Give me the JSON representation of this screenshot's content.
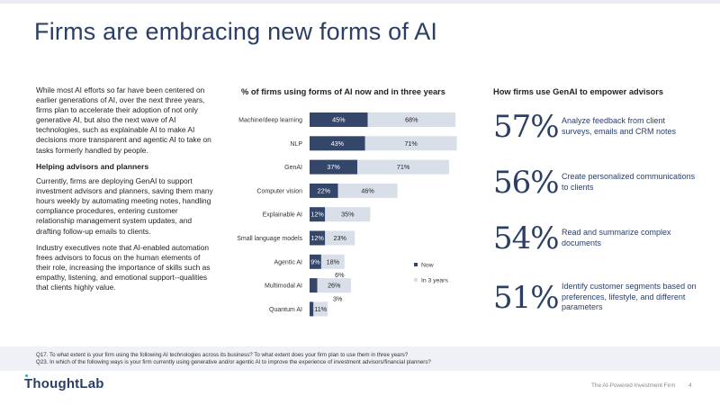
{
  "title": "Firms are embracing new forms of AI",
  "left": {
    "p1": "While most AI efforts so far have been centered on earlier generations of AI, over the next three years, firms plan to accelerate their adoption of not only generative AI, but also the next  wave of AI technologies, such as explainable AI to make AI decisions more transparent and agentic AI to take on tasks formerly handled by people.",
    "heading": "Helping advisors and planners",
    "p2": "Currently, firms are deploying GenAI to support investment advisors and planners, saving them many hours weekly by automating meeting notes, handling compliance procedures, entering customer relationship management system updates, and drafting follow-up emails to clients.",
    "p3": "Industry executives note that AI-enabled automation frees advisors to focus on the human elements of their role, increasing the importance of skills such as empathy, listening, and emotional support--qualities that clients highly value."
  },
  "chart_title": "% of firms using forms of AI now and in three years",
  "chart_data": {
    "type": "bar",
    "orientation": "horizontal",
    "stacked": true,
    "categories": [
      "Machine/deep learning",
      "NLP",
      "GenAI",
      "Computer vision",
      "Explainable AI",
      "Small language models",
      "Agentic AI",
      "Multimodal AI",
      "Quantum AI"
    ],
    "series": [
      {
        "name": "Now",
        "values": [
          45,
          43,
          37,
          22,
          12,
          12,
          9,
          6,
          3
        ],
        "labels": [
          "45%",
          "43%",
          "37%",
          "22%",
          "12%",
          "12%",
          "9%",
          "6%",
          "3%"
        ],
        "color": "#34466a"
      },
      {
        "name": "In 3 years",
        "values": [
          68,
          71,
          71,
          46,
          35,
          23,
          18,
          26,
          11
        ],
        "labels": [
          "68%",
          "71%",
          "71%",
          "46%",
          "35%",
          "23%",
          "18%",
          "26%",
          "11%"
        ],
        "color": "#d9dfe9"
      }
    ],
    "legend": "right",
    "grid": false
  },
  "right_title": "How firms use GenAI to empower advisors",
  "stats": [
    {
      "pct": "57%",
      "desc": "Analyze feedback from client surveys, emails and CRM notes"
    },
    {
      "pct": "56%",
      "desc": "Create personalized communications to clients"
    },
    {
      "pct": "54%",
      "desc": "Read and summarize complex documents"
    },
    {
      "pct": "51%",
      "desc": "Identify customer segments based on preferences, lifestyle, and different parameters"
    }
  ],
  "footnote": {
    "q17": "Q17. To what extent is your firm using the following AI technologies across its business? To what extent does your firm plan to use them in three years?",
    "q23": "Q23. In which of the following ways is your firm currently using generative and/or agentic AI to improve the experience of investment advisors/financial planners?"
  },
  "footer": {
    "logo": "ThoughtLab",
    "report": "The AI-Powered Investment Firm",
    "page": "4"
  }
}
